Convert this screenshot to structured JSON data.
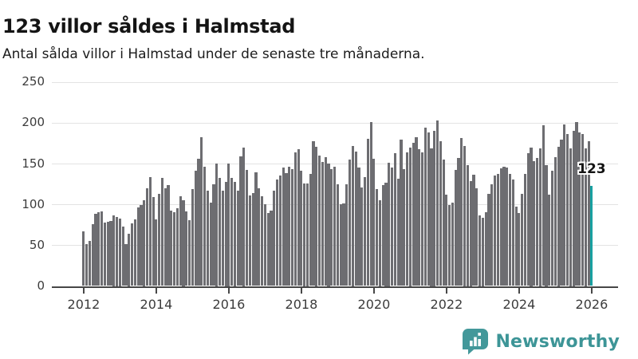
{
  "header": {
    "title": "123 villor såldes i Halmstad",
    "subtitle": "Antal sålda villor i Halmstad under de senaste tre månaderna."
  },
  "chart_data": {
    "type": "bar",
    "title": "123 villor såldes i Halmstad",
    "xlabel": "",
    "ylabel": "",
    "frequency": "monthly",
    "x_start": "2012",
    "x_end": "2026",
    "ylim": [
      0,
      250
    ],
    "y_ticks": [
      0,
      50,
      100,
      150,
      200,
      250
    ],
    "x_tick_labels": [
      "2012",
      "2014",
      "2016",
      "2018",
      "2020",
      "2022",
      "2024",
      "2026"
    ],
    "grid": "horizontal",
    "values": [
      67,
      51,
      55,
      76,
      88,
      90,
      91,
      78,
      79,
      80,
      87,
      85,
      83,
      73,
      51,
      64,
      77,
      82,
      96,
      99,
      105,
      120,
      133,
      109,
      82,
      113,
      132,
      120,
      124,
      92,
      90,
      95,
      110,
      105,
      91,
      81,
      119,
      141,
      156,
      182,
      146,
      117,
      102,
      125,
      150,
      132,
      117,
      128,
      150,
      132,
      128,
      117,
      159,
      170,
      142,
      111,
      114,
      139,
      120,
      110,
      100,
      89,
      92,
      117,
      130,
      135,
      145,
      138,
      146,
      143,
      164,
      168,
      141,
      126,
      126,
      137,
      177,
      171,
      160,
      152,
      158,
      150,
      143,
      146,
      125,
      100,
      101,
      125,
      155,
      172,
      165,
      145,
      121,
      133,
      180,
      201,
      156,
      119,
      105,
      124,
      127,
      151,
      145,
      163,
      131,
      179,
      143,
      164,
      170,
      175,
      182,
      168,
      164,
      194,
      188,
      169,
      190,
      203,
      177,
      155,
      112,
      99,
      102,
      142,
      157,
      181,
      172,
      148,
      129,
      136,
      120,
      87,
      84,
      90,
      113,
      125,
      135,
      137,
      144,
      146,
      145,
      137,
      130,
      97,
      89,
      113,
      137,
      163,
      170,
      153,
      157,
      169,
      197,
      148,
      112,
      141,
      158,
      171,
      179,
      198,
      186,
      169,
      190,
      201,
      188,
      186,
      169,
      177,
      123
    ],
    "highlight": {
      "index": 168,
      "value": 123,
      "label": "123"
    },
    "bar_color": "#6d6d71",
    "highlight_color": "#18a0a1",
    "annotation": "123"
  },
  "footer": {
    "brand": "Newsworthy",
    "logo_icon": "speech-bubble-bar-chart-icon",
    "brand_color": "#3d9597",
    "icon_color": "#43989a"
  },
  "colors": {
    "background": "#ffffff",
    "bar": "#6d6d71",
    "accent": "#18a0a1",
    "grid": "#e3e3e3",
    "axis": "#474747",
    "text": "#141414",
    "tick_text": "#3c3c3c"
  }
}
